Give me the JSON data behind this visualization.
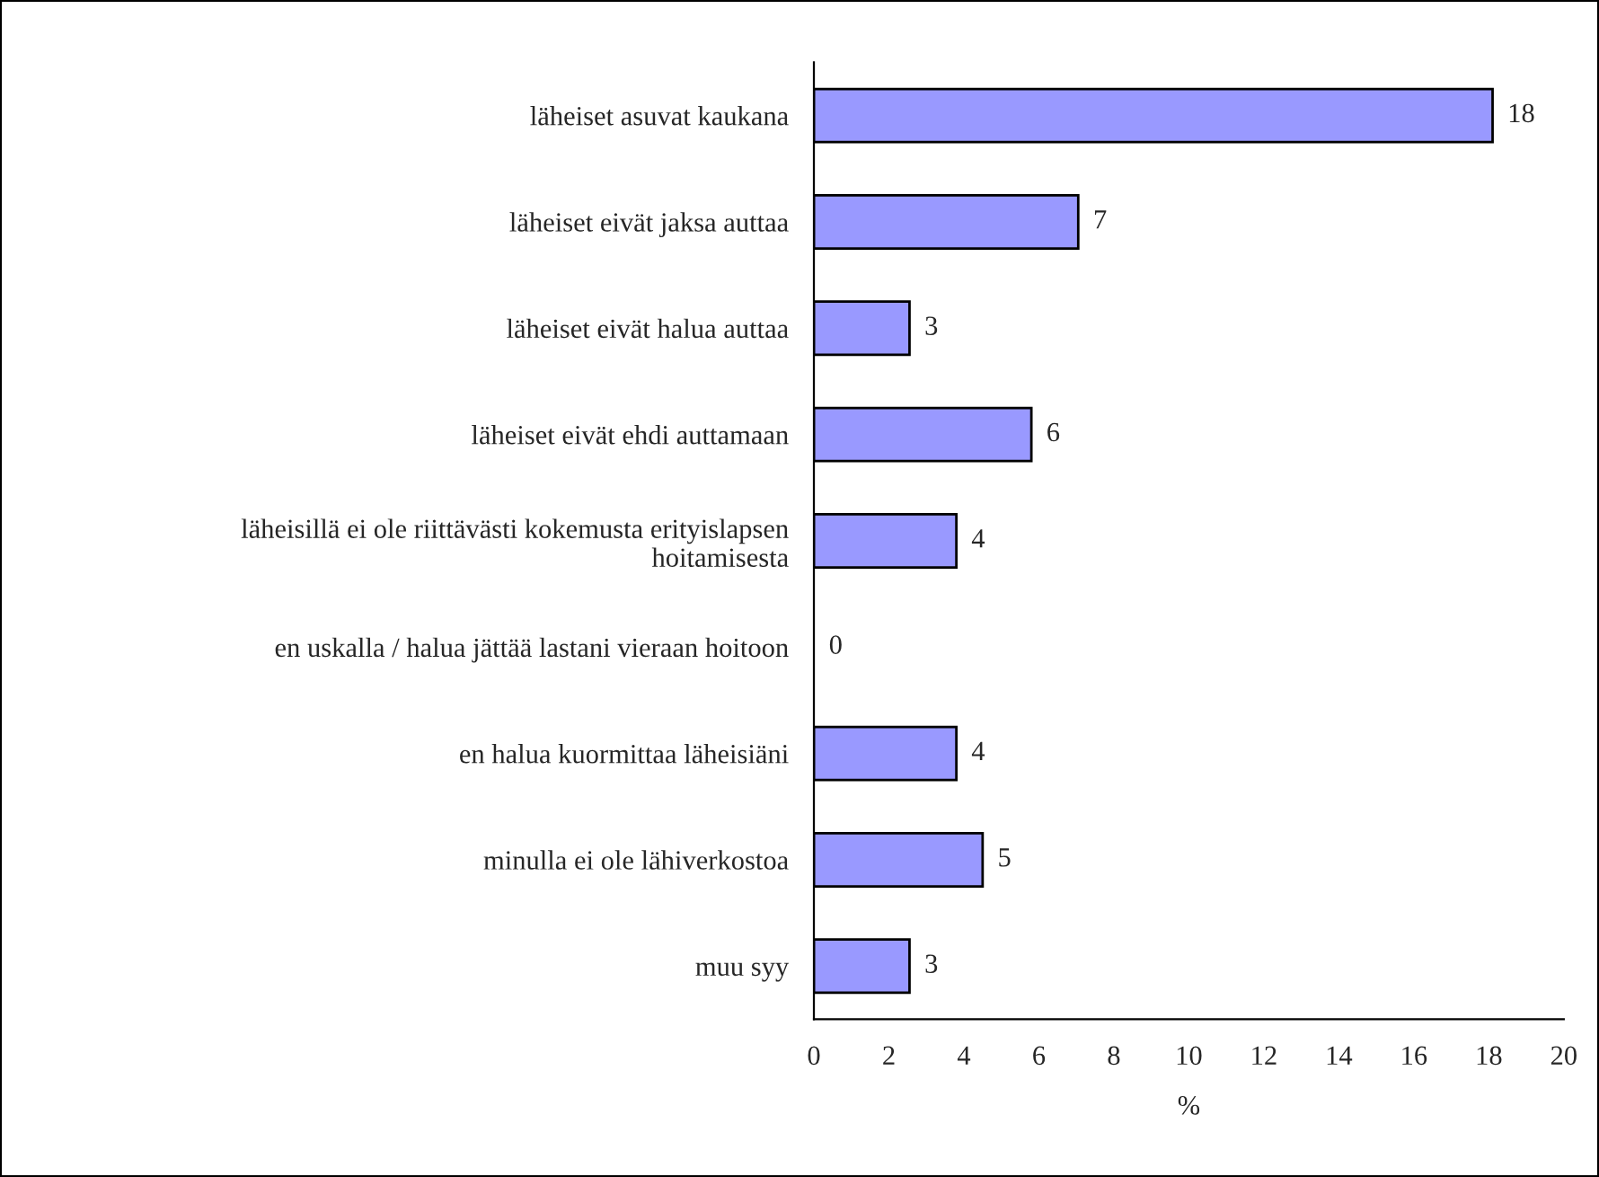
{
  "chart_data": {
    "type": "bar",
    "orientation": "horizontal",
    "xlabel": "%",
    "categories": [
      "läheiset asuvat kaukana",
      "läheiset eivät jaksa auttaa",
      "läheiset eivät halua auttaa",
      "läheiset eivät ehdi auttamaan",
      "läheisillä ei ole riittävästi kokemusta erityislapsen\nhoitamisesta",
      "en uskalla / halua jättää lastani vieraan hoitoon",
      "en halua kuormittaa läheisiäni",
      "minulla ei ole lähiverkostoa",
      "muu syy"
    ],
    "values": [
      18.1,
      7.05,
      2.55,
      5.8,
      3.8,
      0,
      3.8,
      4.5,
      2.55
    ],
    "value_labels": [
      "18",
      "7",
      "3",
      "6",
      "4",
      "0",
      "4",
      "5",
      "3"
    ],
    "color": "#9999ff",
    "xlim": [
      0,
      20
    ],
    "xticks": [
      0,
      2,
      4,
      6,
      8,
      10,
      12,
      14,
      16,
      18,
      20
    ],
    "grid": false,
    "legend": false
  }
}
